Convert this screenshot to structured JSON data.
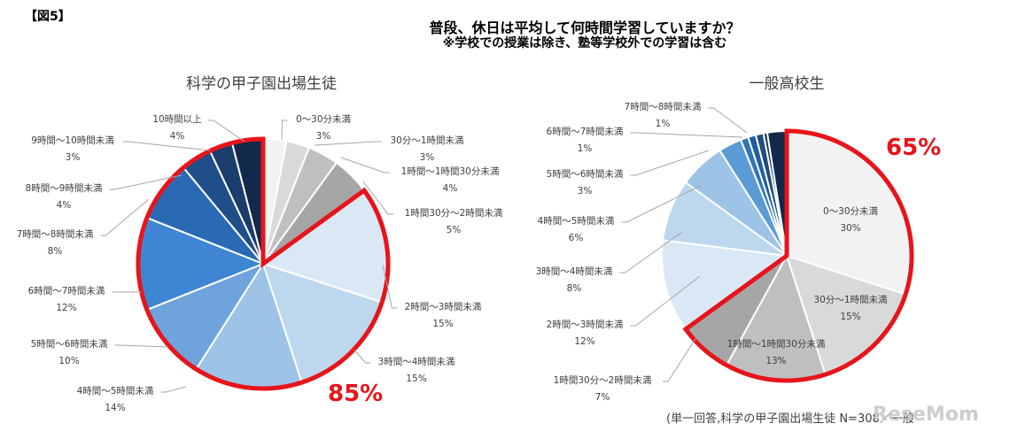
{
  "figure_label": "【図5】",
  "title": "普段、休日は平均して何時間学習していますか？",
  "subtitle": "※学校での授業は除き、塾等学校外での学習は含む",
  "footnote": "(単一回答,科学の甲子園出場生徒 N=308／一般",
  "watermark": "ReseMom",
  "chart_data": [
    {
      "type": "pie",
      "title": "科学の甲子園出場生徒",
      "highlight_label": "85%",
      "highlight_range": "2時間以上",
      "slices": [
        {
          "label": "0～30分未満",
          "pct": "3%",
          "value": 3,
          "color": "#f2f2f2"
        },
        {
          "label": "30分～1時間未満",
          "pct": "3%",
          "value": 3,
          "color": "#d9d9d9"
        },
        {
          "label": "1時間～1時間30分未満",
          "pct": "4%",
          "value": 4,
          "color": "#bfbfbf"
        },
        {
          "label": "1時間30分～2時間未満",
          "pct": "5%",
          "value": 5,
          "color": "#a6a6a6"
        },
        {
          "label": "2時間～3時間未満",
          "pct": "15%",
          "value": 15,
          "color": "#dae8f6"
        },
        {
          "label": "3時間～4時間未満",
          "pct": "15%",
          "value": 15,
          "color": "#bdd7ee"
        },
        {
          "label": "4時間～5時間未満",
          "pct": "14%",
          "value": 14,
          "color": "#9dc3e6"
        },
        {
          "label": "5時間～6時間未満",
          "pct": "10%",
          "value": 10,
          "color": "#6fa3dc"
        },
        {
          "label": "6時間～7時間未満",
          "pct": "12%",
          "value": 12,
          "color": "#3e85d4"
        },
        {
          "label": "7時間～8時間未満",
          "pct": "8%",
          "value": 8,
          "color": "#2a6ab5"
        },
        {
          "label": "8時間～9時間未満",
          "pct": "4%",
          "value": 4,
          "color": "#1f4e89"
        },
        {
          "label": "9時間～10時間未満",
          "pct": "3%",
          "value": 3,
          "color": "#1b3d6b"
        },
        {
          "label": "10時間以上",
          "pct": "4%",
          "value": 4,
          "color": "#13294b"
        }
      ]
    },
    {
      "type": "pie",
      "title": "一般高校生",
      "highlight_label": "65%",
      "highlight_range": "2時間未満",
      "slices": [
        {
          "label": "0～30分未満",
          "pct": "30%",
          "value": 30,
          "color": "#f2f2f2"
        },
        {
          "label": "30分～1時間未満",
          "pct": "15%",
          "value": 15,
          "color": "#d9d9d9"
        },
        {
          "label": "1時間～1時間30分未満",
          "pct": "13%",
          "value": 13,
          "color": "#bfbfbf"
        },
        {
          "label": "1時間30分～2時間未満",
          "pct": "7%",
          "value": 7,
          "color": "#a6a6a6"
        },
        {
          "label": "2時間～3時間未満",
          "pct": "12%",
          "value": 12,
          "color": "#dae8f6"
        },
        {
          "label": "3時間～4時間未満",
          "pct": "8%",
          "value": 8,
          "color": "#bdd7ee"
        },
        {
          "label": "4時間～5時間未満",
          "pct": "6%",
          "value": 6,
          "color": "#9dc3e6"
        },
        {
          "label": "5時間～6時間未満",
          "pct": "3%",
          "value": 3,
          "color": "#5b9bd5"
        },
        {
          "label": "6時間～7時間未満",
          "pct": "1%",
          "value": 1,
          "color": "#2e75b6"
        },
        {
          "label": "7時間～8時間未満",
          "pct": "1%",
          "value": 1,
          "color": "#1f5f9f"
        },
        {
          "value": 1,
          "color": "#1f4e79"
        },
        {
          "value": 0.5,
          "color": "#17375e"
        },
        {
          "value": 2.5,
          "color": "#13294b"
        }
      ]
    }
  ]
}
